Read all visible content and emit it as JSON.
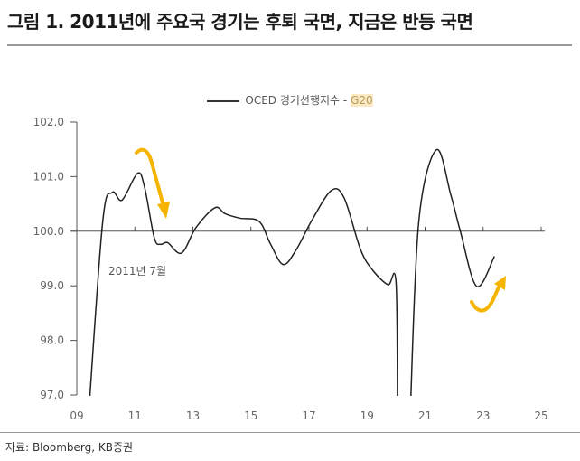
{
  "title": "그림 1. 2011년에 주요국 경기는 후퇴 국면, 지금은 반등 국면",
  "source": "자료: Bloomberg, KB증권",
  "colors": {
    "line": "#222222",
    "annotation_arrow": "#f5b400",
    "legend_highlight": "#fbe9c4"
  },
  "chart_data": {
    "type": "line",
    "title": "",
    "xlabel": "",
    "ylabel": "",
    "legend": {
      "position": "top-center",
      "label_prefix": "OCED 경기선행지수 - ",
      "label_highlight": "G20"
    },
    "xlim": [
      9,
      25
    ],
    "ylim": [
      97.0,
      102.0
    ],
    "x_ticks": [
      "09",
      "11",
      "13",
      "15",
      "17",
      "19",
      "21",
      "23",
      "25"
    ],
    "y_ticks": [
      "102.0",
      "101.0",
      "100.0",
      "99.0",
      "98.0",
      "97.0"
    ],
    "grid": false,
    "baseline": 100.0,
    "annotation": "2011년 7월",
    "series": [
      {
        "name": "OCED 경기선행지수 - G20",
        "segments": [
          [
            [
              9.39,
              96.5
            ],
            [
              9.89,
              100.16
            ],
            [
              10.22,
              100.71
            ],
            [
              10.56,
              100.57
            ],
            [
              11.09,
              101.06
            ],
            [
              11.33,
              100.82
            ],
            [
              11.67,
              99.88
            ],
            [
              11.89,
              99.76
            ],
            [
              12.13,
              99.79
            ],
            [
              12.61,
              99.6
            ],
            [
              13.11,
              100.07
            ],
            [
              13.76,
              100.43
            ],
            [
              14.11,
              100.32
            ],
            [
              14.61,
              100.24
            ],
            [
              15.28,
              100.18
            ],
            [
              15.67,
              99.77
            ],
            [
              16.11,
              99.39
            ],
            [
              16.56,
              99.66
            ],
            [
              17.11,
              100.21
            ],
            [
              17.78,
              100.75
            ],
            [
              18.22,
              100.6
            ],
            [
              18.78,
              99.66
            ],
            [
              19.22,
              99.27
            ],
            [
              19.72,
              99.02
            ],
            [
              20.0,
              99.06
            ],
            [
              20.05,
              96.5
            ]
          ],
          [
            [
              20.48,
              96.5
            ],
            [
              20.78,
              100.16
            ],
            [
              21.39,
              101.49
            ],
            [
              21.89,
              100.66
            ],
            [
              22.22,
              99.99
            ],
            [
              22.78,
              98.99
            ],
            [
              23.39,
              99.54
            ]
          ]
        ]
      }
    ]
  }
}
